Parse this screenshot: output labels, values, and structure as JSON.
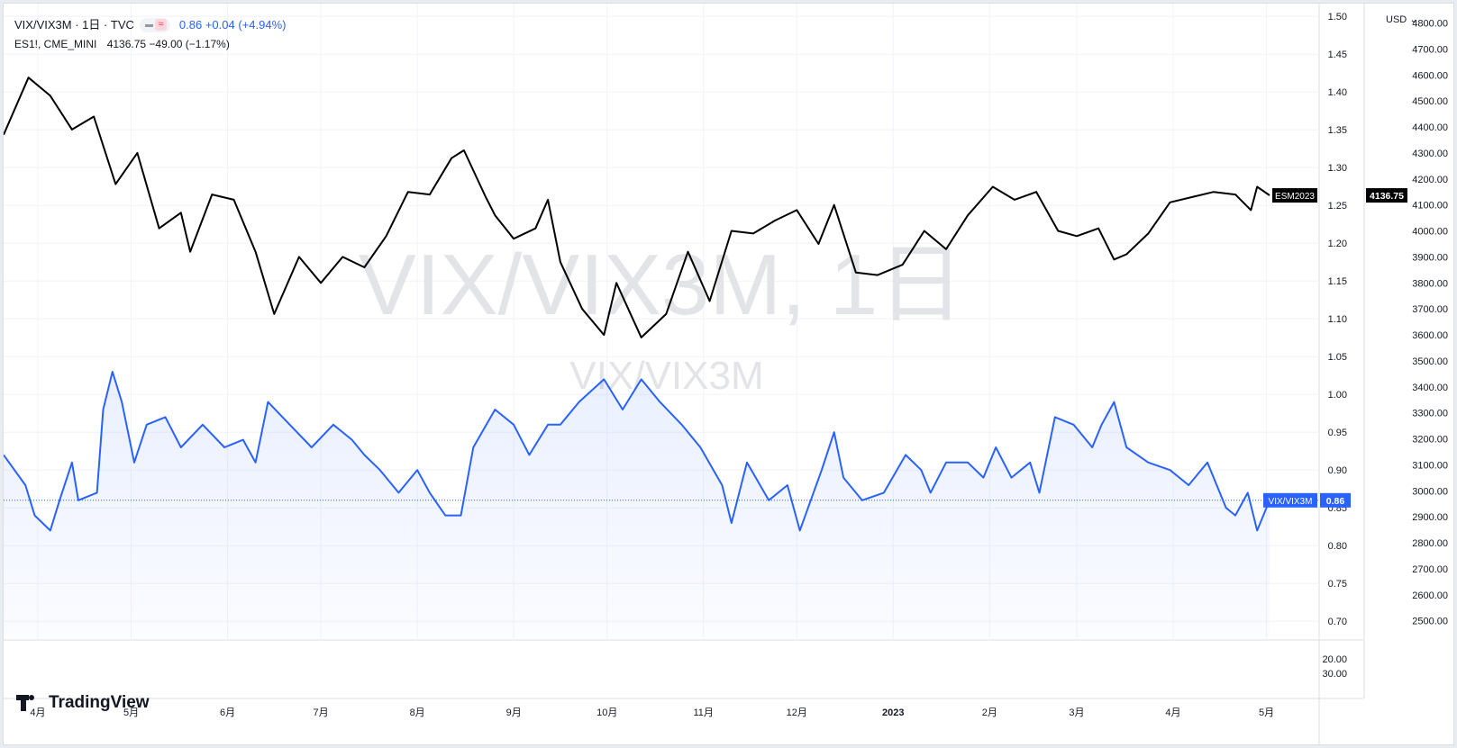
{
  "legend": {
    "main_symbol": "VIX/VIX3M · 1日 · TVC",
    "main_value": "0.86 +0.04 (+4.94%)",
    "compare_symbol": "ES1!, CME_MINI",
    "compare_value": "4136.75 −49.00 (−1.17%)"
  },
  "watermark": {
    "line1": "VIX/VIX3M, 1日",
    "line2": "VIX/VIX3M"
  },
  "logo_text": "TradingView",
  "currency_button": "USD",
  "colors": {
    "es": "#000000",
    "ratio": "#2962ff",
    "grid": "#f0f3fa",
    "watermark": "#e3e4e8"
  },
  "chart_data": {
    "type": "line",
    "x_ticks": [
      "4月",
      "5月",
      "6月",
      "7月",
      "8月",
      "9月",
      "10月",
      "11月",
      "12月",
      "2023",
      "2月",
      "3月",
      "4月",
      "5月"
    ],
    "axis_left_ticks": [
      "1.50",
      "1.45",
      "1.40",
      "1.35",
      "1.30",
      "1.25",
      "1.20",
      "1.15",
      "1.10",
      "1.05",
      "1.00",
      "0.95",
      "0.90",
      "0.85",
      "0.80",
      "0.75",
      "0.70"
    ],
    "axis_right_ticks": [
      "4800.00",
      "4700.00",
      "4600.00",
      "4500.00",
      "4400.00",
      "4300.00",
      "4200.00",
      "4100.00",
      "4000.00",
      "3900.00",
      "3800.00",
      "3700.00",
      "3600.00",
      "3500.00",
      "3400.00",
      "3300.00",
      "3200.00",
      "3100.00",
      "3000.00",
      "2900.00",
      "2800.00",
      "2700.00",
      "2600.00",
      "2500.00"
    ],
    "lower_pane_ticks": [
      "20.00",
      "30.00"
    ],
    "ratio_ylim": [
      0.68,
      1.505
    ],
    "es_ylim": [
      2440,
      4840
    ],
    "series": [
      {
        "name": "ESM2023",
        "last_value": "4136.75",
        "points": [
          [
            "2022-03-21",
            4370
          ],
          [
            "2022-03-29",
            4590
          ],
          [
            "2022-04-05",
            4520
          ],
          [
            "2022-04-12",
            4390
          ],
          [
            "2022-04-19",
            4440
          ],
          [
            "2022-04-26",
            4180
          ],
          [
            "2022-05-03",
            4300
          ],
          [
            "2022-05-10",
            4010
          ],
          [
            "2022-05-17",
            4070
          ],
          [
            "2022-05-20",
            3920
          ],
          [
            "2022-05-27",
            4140
          ],
          [
            "2022-06-03",
            4120
          ],
          [
            "2022-06-10",
            3920
          ],
          [
            "2022-06-16",
            3680
          ],
          [
            "2022-06-24",
            3900
          ],
          [
            "2022-07-01",
            3800
          ],
          [
            "2022-07-08",
            3900
          ],
          [
            "2022-07-15",
            3860
          ],
          [
            "2022-07-22",
            3980
          ],
          [
            "2022-07-29",
            4150
          ],
          [
            "2022-08-05",
            4140
          ],
          [
            "2022-08-12",
            4280
          ],
          [
            "2022-08-16",
            4310
          ],
          [
            "2022-08-23",
            4130
          ],
          [
            "2022-08-26",
            4060
          ],
          [
            "2022-09-01",
            3970
          ],
          [
            "2022-09-08",
            4010
          ],
          [
            "2022-09-12",
            4120
          ],
          [
            "2022-09-16",
            3880
          ],
          [
            "2022-09-23",
            3700
          ],
          [
            "2022-09-30",
            3600
          ],
          [
            "2022-10-04",
            3800
          ],
          [
            "2022-10-12",
            3590
          ],
          [
            "2022-10-20",
            3680
          ],
          [
            "2022-10-27",
            3920
          ],
          [
            "2022-11-03",
            3730
          ],
          [
            "2022-11-10",
            4000
          ],
          [
            "2022-11-17",
            3990
          ],
          [
            "2022-11-24",
            4040
          ],
          [
            "2022-12-01",
            4080
          ],
          [
            "2022-12-08",
            3950
          ],
          [
            "2022-12-13",
            4100
          ],
          [
            "2022-12-20",
            3840
          ],
          [
            "2022-12-27",
            3830
          ],
          [
            "2023-01-04",
            3870
          ],
          [
            "2023-01-11",
            4000
          ],
          [
            "2023-01-18",
            3930
          ],
          [
            "2023-01-25",
            4060
          ],
          [
            "2023-02-02",
            4170
          ],
          [
            "2023-02-09",
            4120
          ],
          [
            "2023-02-16",
            4150
          ],
          [
            "2023-02-23",
            4000
          ],
          [
            "2023-03-01",
            3980
          ],
          [
            "2023-03-08",
            4010
          ],
          [
            "2023-03-13",
            3890
          ],
          [
            "2023-03-17",
            3910
          ],
          [
            "2023-03-24",
            3990
          ],
          [
            "2023-03-31",
            4110
          ],
          [
            "2023-04-07",
            4130
          ],
          [
            "2023-04-14",
            4150
          ],
          [
            "2023-04-21",
            4140
          ],
          [
            "2023-04-26",
            4080
          ],
          [
            "2023-04-28",
            4170
          ],
          [
            "2023-05-02",
            4137
          ]
        ]
      },
      {
        "name": "VIX/VIX3M",
        "last_value": "0.86",
        "points": [
          [
            "2022-03-21",
            0.92
          ],
          [
            "2022-03-28",
            0.88
          ],
          [
            "2022-03-31",
            0.84
          ],
          [
            "2022-04-05",
            0.82
          ],
          [
            "2022-04-08",
            0.86
          ],
          [
            "2022-04-12",
            0.91
          ],
          [
            "2022-04-14",
            0.86
          ],
          [
            "2022-04-20",
            0.87
          ],
          [
            "2022-04-22",
            0.98
          ],
          [
            "2022-04-25",
            1.03
          ],
          [
            "2022-04-28",
            0.99
          ],
          [
            "2022-05-02",
            0.91
          ],
          [
            "2022-05-06",
            0.96
          ],
          [
            "2022-05-12",
            0.97
          ],
          [
            "2022-05-17",
            0.93
          ],
          [
            "2022-05-24",
            0.96
          ],
          [
            "2022-05-31",
            0.93
          ],
          [
            "2022-06-06",
            0.94
          ],
          [
            "2022-06-10",
            0.91
          ],
          [
            "2022-06-14",
            0.99
          ],
          [
            "2022-06-21",
            0.96
          ],
          [
            "2022-06-28",
            0.93
          ],
          [
            "2022-07-05",
            0.96
          ],
          [
            "2022-07-11",
            0.94
          ],
          [
            "2022-07-15",
            0.92
          ],
          [
            "2022-07-20",
            0.9
          ],
          [
            "2022-07-26",
            0.87
          ],
          [
            "2022-08-01",
            0.9
          ],
          [
            "2022-08-05",
            0.87
          ],
          [
            "2022-08-10",
            0.84
          ],
          [
            "2022-08-15",
            0.84
          ],
          [
            "2022-08-19",
            0.93
          ],
          [
            "2022-08-26",
            0.98
          ],
          [
            "2022-09-01",
            0.96
          ],
          [
            "2022-09-06",
            0.92
          ],
          [
            "2022-09-12",
            0.96
          ],
          [
            "2022-09-16",
            0.96
          ],
          [
            "2022-09-22",
            0.99
          ],
          [
            "2022-09-30",
            1.02
          ],
          [
            "2022-10-06",
            0.98
          ],
          [
            "2022-10-12",
            1.02
          ],
          [
            "2022-10-18",
            0.99
          ],
          [
            "2022-10-25",
            0.96
          ],
          [
            "2022-10-31",
            0.93
          ],
          [
            "2022-11-07",
            0.88
          ],
          [
            "2022-11-10",
            0.83
          ],
          [
            "2022-11-15",
            0.91
          ],
          [
            "2022-11-22",
            0.86
          ],
          [
            "2022-11-28",
            0.88
          ],
          [
            "2022-12-02",
            0.82
          ],
          [
            "2022-12-09",
            0.9
          ],
          [
            "2022-12-13",
            0.95
          ],
          [
            "2022-12-16",
            0.89
          ],
          [
            "2022-12-22",
            0.86
          ],
          [
            "2022-12-29",
            0.87
          ],
          [
            "2023-01-05",
            0.92
          ],
          [
            "2023-01-10",
            0.9
          ],
          [
            "2023-01-13",
            0.87
          ],
          [
            "2023-01-18",
            0.91
          ],
          [
            "2023-01-25",
            0.91
          ],
          [
            "2023-01-30",
            0.89
          ],
          [
            "2023-02-03",
            0.93
          ],
          [
            "2023-02-08",
            0.89
          ],
          [
            "2023-02-14",
            0.91
          ],
          [
            "2023-02-17",
            0.87
          ],
          [
            "2023-02-22",
            0.97
          ],
          [
            "2023-02-28",
            0.96
          ],
          [
            "2023-03-06",
            0.93
          ],
          [
            "2023-03-09",
            0.96
          ],
          [
            "2023-03-13",
            0.99
          ],
          [
            "2023-03-17",
            0.93
          ],
          [
            "2023-03-24",
            0.91
          ],
          [
            "2023-03-31",
            0.9
          ],
          [
            "2023-04-06",
            0.88
          ],
          [
            "2023-04-12",
            0.91
          ],
          [
            "2023-04-18",
            0.85
          ],
          [
            "2023-04-21",
            0.84
          ],
          [
            "2023-04-25",
            0.87
          ],
          [
            "2023-04-28",
            0.82
          ],
          [
            "2023-05-02",
            0.86
          ]
        ]
      }
    ]
  }
}
